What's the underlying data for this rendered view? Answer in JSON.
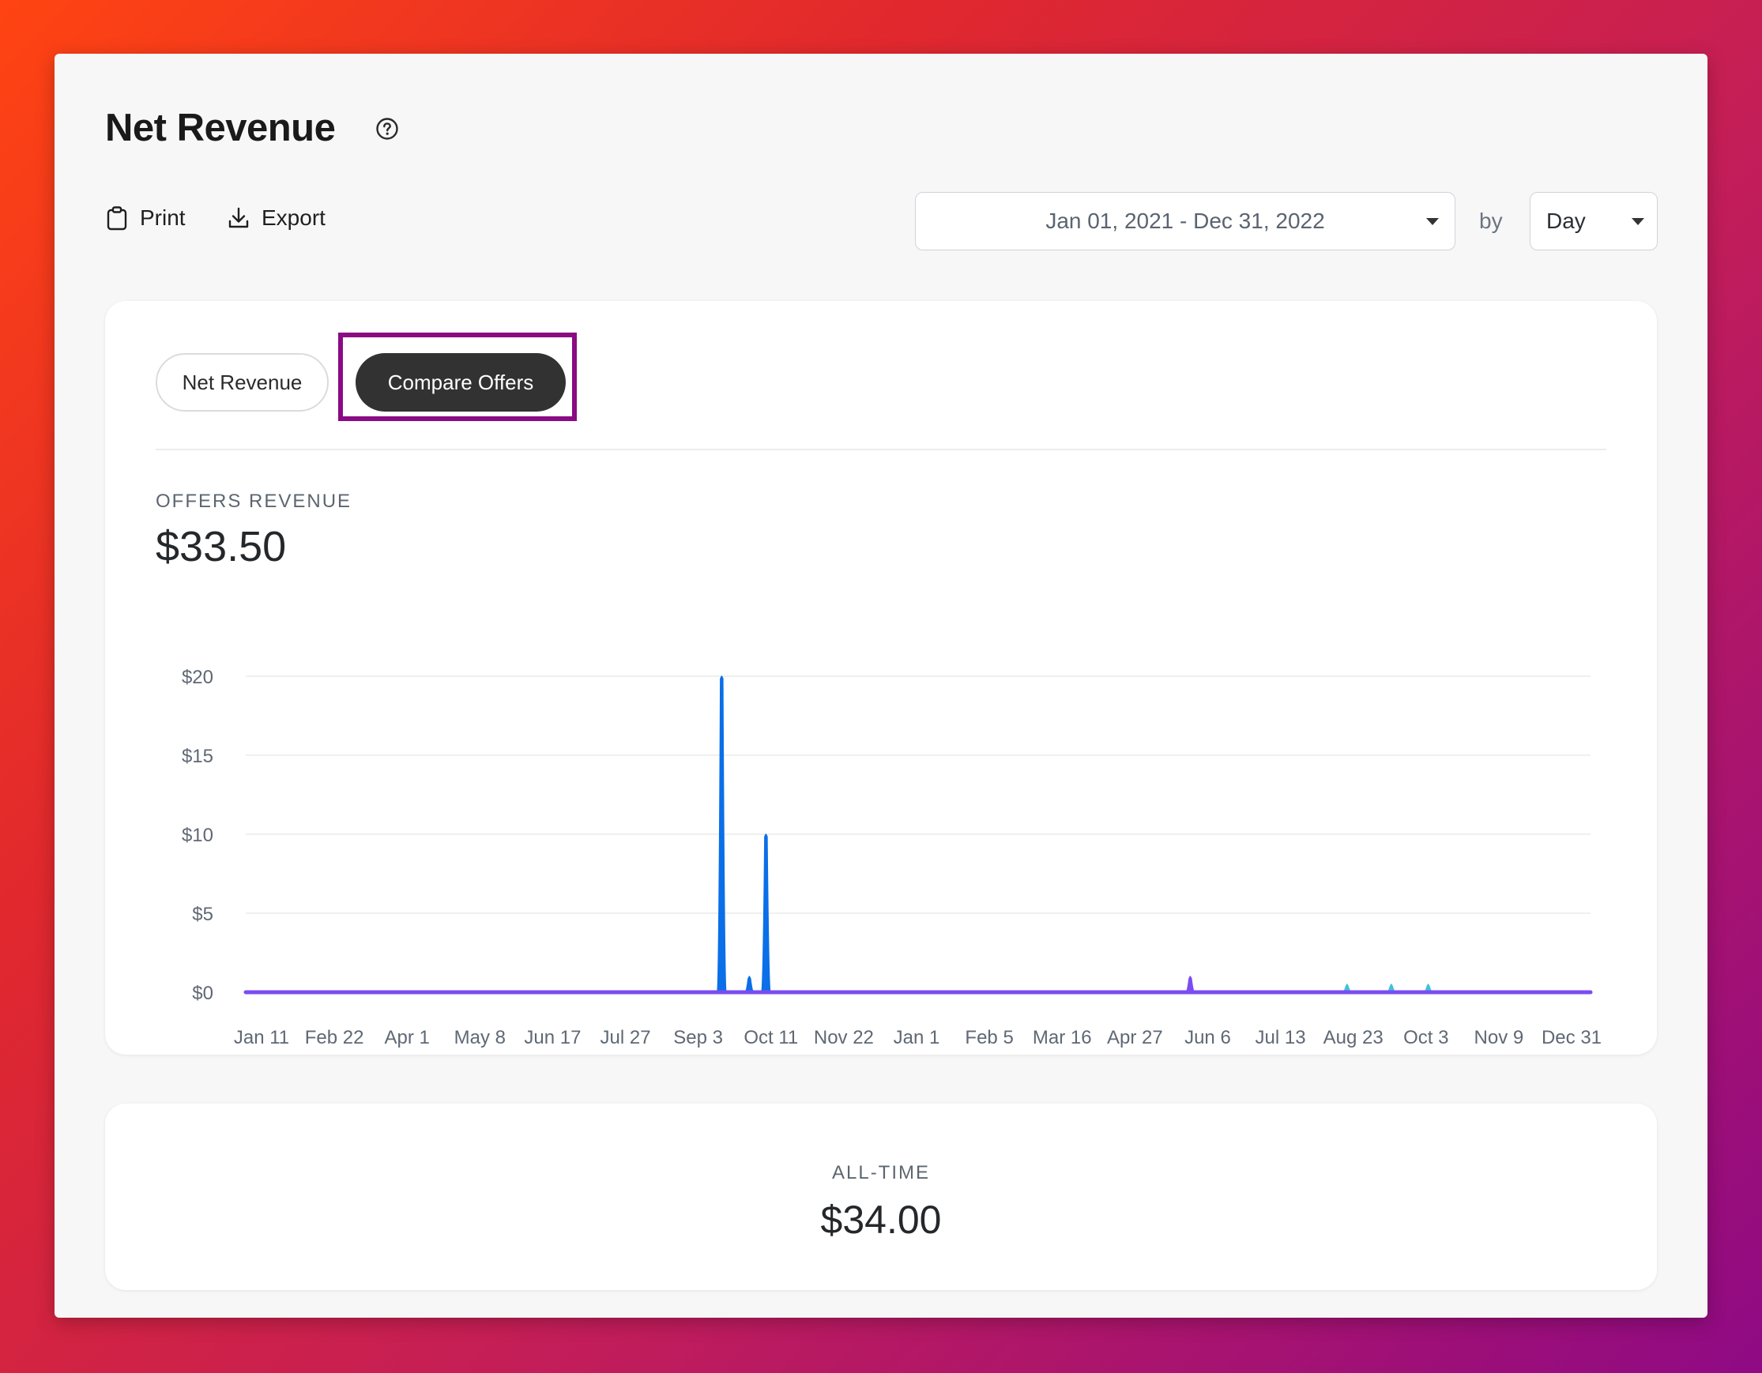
{
  "header": {
    "title": "Net Revenue",
    "help_icon": "question-circle-icon"
  },
  "toolbar": {
    "print_label": "Print",
    "print_icon": "clipboard-icon",
    "export_label": "Export",
    "export_icon": "download-icon"
  },
  "filters": {
    "date_range": "Jan 01, 2021 - Dec 31, 2022",
    "by_label": "by",
    "period": "Day"
  },
  "tabs": [
    {
      "label": "Net Revenue",
      "active": false
    },
    {
      "label": "Compare Offers",
      "active": true
    }
  ],
  "metric": {
    "label": "OFFERS REVENUE",
    "value": "$33.50"
  },
  "chart_data": {
    "type": "line",
    "y_tick_labels": [
      "$0",
      "$5",
      "$10",
      "$15",
      "$20"
    ],
    "ylim": [
      0,
      20
    ],
    "x_tick_labels": [
      "Jan 11",
      "Feb 22",
      "Apr 1",
      "May 8",
      "Jun 17",
      "Jul 27",
      "Sep 3",
      "Oct 11",
      "Nov 22",
      "Jan 1",
      "Feb 5",
      "Mar 16",
      "Apr 27",
      "Jun 6",
      "Jul 13",
      "Aug 23",
      "Oct 3",
      "Nov 9",
      "Dec 31"
    ],
    "x_range": [
      "2021-01-01",
      "2022-12-31"
    ],
    "grid": true,
    "series": [
      {
        "color": "#0a6fe8",
        "points": [
          {
            "x": "2021-09-16",
            "y": 20
          },
          {
            "x": "2021-10-01",
            "y": 1
          },
          {
            "x": "2021-10-10",
            "y": 10
          }
        ]
      },
      {
        "color": "#7a4cf2",
        "points": [
          {
            "x": "2022-05-28",
            "y": 1
          }
        ]
      },
      {
        "color": "#3ec3d8",
        "points": [
          {
            "x": "2022-08-21",
            "y": 0.5
          },
          {
            "x": "2022-09-14",
            "y": 0.5
          },
          {
            "x": "2022-10-04",
            "y": 0.5
          }
        ]
      }
    ]
  },
  "alltime": {
    "label": "ALL-TIME",
    "value": "$34.00"
  }
}
